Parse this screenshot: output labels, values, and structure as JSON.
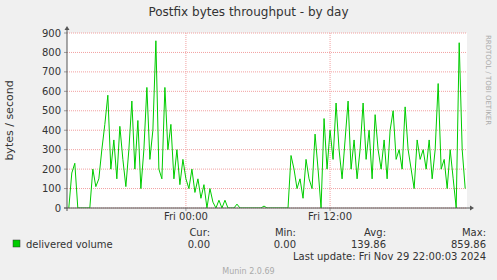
{
  "chart_data": {
    "type": "line",
    "title": "Postfix bytes throughput - by day",
    "y_label": "bytes / second",
    "watermark": "RRDTOOL / TOBI OETIKER",
    "x": [
      -9.75,
      -9.5,
      -9.25,
      -9,
      -8.75,
      -8.5,
      -8.25,
      -8,
      -7.75,
      -7.5,
      -7.25,
      -7,
      -6.75,
      -6.5,
      -6.25,
      -6,
      -5.75,
      -5.5,
      -5.25,
      -5,
      -4.75,
      -4.5,
      -4.25,
      -4,
      -3.75,
      -3.5,
      -3.25,
      -3,
      -2.75,
      -2.5,
      -2.25,
      -2,
      -1.75,
      -1.5,
      -1.25,
      -1,
      -0.75,
      -0.5,
      -0.25,
      0,
      0.25,
      0.5,
      0.75,
      1,
      1.25,
      1.5,
      1.75,
      2,
      2.25,
      2.5,
      2.75,
      3,
      3.25,
      3.5,
      3.75,
      4,
      4.25,
      4.5,
      4.75,
      5,
      5.25,
      5.5,
      5.75,
      6,
      6.25,
      6.5,
      6.75,
      7,
      7.25,
      7.5,
      7.75,
      8,
      8.25,
      8.5,
      8.75,
      9,
      9.25,
      9.5,
      9.75,
      10,
      10.25,
      10.5,
      10.75,
      11,
      11.25,
      11.5,
      11.75,
      12,
      12.25,
      12.5,
      12.75,
      13,
      13.25,
      13.5,
      13.75,
      14,
      14.25,
      14.5,
      14.75,
      15,
      15.25,
      15.5,
      15.75,
      16,
      16.25,
      16.5,
      16.75,
      17,
      17.25,
      17.5,
      17.75,
      18,
      18.25,
      18.5,
      18.75,
      19,
      19.25,
      19.5,
      19.75,
      20,
      20.25,
      20.5,
      20.75,
      21,
      21.25,
      21.5,
      21.75,
      22,
      22.25,
      22.5,
      22.75,
      23,
      23.25
    ],
    "series": [
      {
        "name": "delivered volume",
        "color": "#00cc00",
        "values": [
          0,
          180,
          230,
          0,
          0,
          0,
          0,
          0,
          200,
          110,
          150,
          300,
          430,
          580,
          200,
          350,
          150,
          420,
          250,
          110,
          300,
          550,
          200,
          450,
          100,
          300,
          620,
          250,
          400,
          860,
          200,
          150,
          620,
          300,
          430,
          150,
          300,
          120,
          250,
          150,
          100,
          200,
          80,
          150,
          50,
          120,
          0,
          100,
          30,
          0,
          40,
          0,
          40,
          0,
          0,
          0,
          20,
          0,
          0,
          0,
          0,
          0,
          0,
          0,
          0,
          10,
          0,
          0,
          0,
          0,
          0,
          0,
          0,
          0,
          270,
          200,
          100,
          150,
          50,
          250,
          150,
          100,
          380,
          200,
          0,
          460,
          200,
          400,
          250,
          540,
          300,
          150,
          350,
          550,
          200,
          350,
          150,
          300,
          540,
          250,
          400,
          150,
          480,
          300,
          200,
          350,
          150,
          400,
          500,
          250,
          300,
          200,
          520,
          300,
          200,
          100,
          350,
          250,
          300,
          200,
          350,
          150,
          300,
          640,
          200,
          250,
          100,
          300,
          150,
          0,
          850,
          300,
          100
        ]
      }
    ],
    "xlim": [
      -9.9,
      23.4
    ],
    "xticks": [
      {
        "value": 0,
        "label": "Fri 00:00"
      },
      {
        "value": 12,
        "label": "Fri 12:00"
      }
    ],
    "ylim": [
      0,
      900
    ],
    "yticks": [
      0,
      100,
      200,
      300,
      400,
      500,
      600,
      700,
      800,
      900
    ],
    "grid": true,
    "legend": "bottom",
    "legend_stats": {
      "headers": [
        "Cur:",
        "Min:",
        "Avg:",
        "Max:"
      ],
      "values": [
        "0.00",
        "0.00",
        "139.86",
        "859.86"
      ]
    },
    "last_update": "Last update: Fri Nov 29 22:00:03 2024",
    "footer": "Munin 2.0.69"
  }
}
